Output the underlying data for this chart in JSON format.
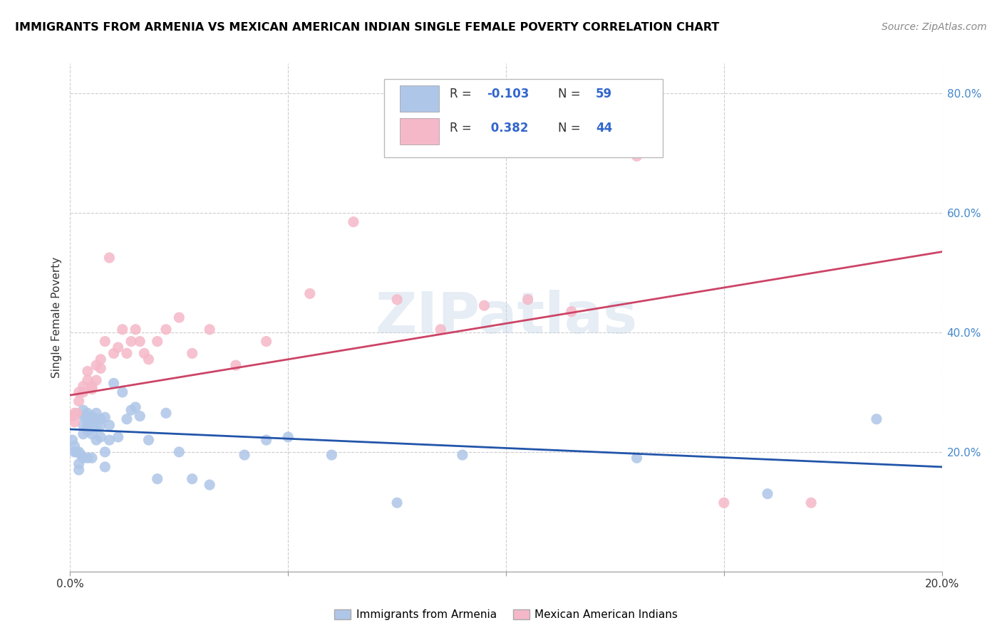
{
  "title": "IMMIGRANTS FROM ARMENIA VS MEXICAN AMERICAN INDIAN SINGLE FEMALE POVERTY CORRELATION CHART",
  "source": "Source: ZipAtlas.com",
  "ylabel": "Single Female Poverty",
  "x_min": 0.0,
  "x_max": 0.2,
  "y_min": 0.0,
  "y_max": 0.85,
  "right_y_ticks": [
    0.2,
    0.4,
    0.6,
    0.8
  ],
  "right_y_labels": [
    "20.0%",
    "40.0%",
    "60.0%",
    "80.0%"
  ],
  "x_tick_positions": [
    0.0,
    0.05,
    0.1,
    0.15,
    0.2
  ],
  "x_tick_labels": [
    "0.0%",
    "",
    "",
    "",
    "20.0%"
  ],
  "blue_color": "#aec6e8",
  "pink_color": "#f5b8c8",
  "blue_line_color": "#2255aa",
  "pink_line_color": "#cc4466",
  "watermark": "ZIPatlas",
  "blue_r": "-0.103",
  "blue_n": "59",
  "pink_r": "0.382",
  "pink_n": "44",
  "blue_scatter_x": [
    0.0005,
    0.001,
    0.001,
    0.0015,
    0.002,
    0.002,
    0.002,
    0.0025,
    0.003,
    0.003,
    0.003,
    0.003,
    0.003,
    0.0035,
    0.004,
    0.004,
    0.004,
    0.004,
    0.004,
    0.004,
    0.005,
    0.005,
    0.005,
    0.005,
    0.005,
    0.006,
    0.006,
    0.006,
    0.006,
    0.007,
    0.007,
    0.007,
    0.008,
    0.008,
    0.008,
    0.009,
    0.009,
    0.01,
    0.011,
    0.012,
    0.013,
    0.014,
    0.015,
    0.016,
    0.018,
    0.02,
    0.022,
    0.025,
    0.028,
    0.032,
    0.04,
    0.045,
    0.05,
    0.06,
    0.075,
    0.09,
    0.13,
    0.16,
    0.185
  ],
  "blue_scatter_y": [
    0.22,
    0.21,
    0.2,
    0.2,
    0.2,
    0.18,
    0.17,
    0.195,
    0.27,
    0.26,
    0.245,
    0.23,
    0.19,
    0.26,
    0.265,
    0.255,
    0.245,
    0.24,
    0.235,
    0.19,
    0.26,
    0.255,
    0.24,
    0.23,
    0.19,
    0.265,
    0.255,
    0.24,
    0.22,
    0.255,
    0.245,
    0.225,
    0.258,
    0.2,
    0.175,
    0.245,
    0.22,
    0.315,
    0.225,
    0.3,
    0.255,
    0.27,
    0.275,
    0.26,
    0.22,
    0.155,
    0.265,
    0.2,
    0.155,
    0.145,
    0.195,
    0.22,
    0.225,
    0.195,
    0.115,
    0.195,
    0.19,
    0.13,
    0.255
  ],
  "pink_scatter_x": [
    0.0005,
    0.001,
    0.001,
    0.0015,
    0.002,
    0.002,
    0.003,
    0.003,
    0.004,
    0.004,
    0.005,
    0.005,
    0.006,
    0.006,
    0.007,
    0.007,
    0.008,
    0.009,
    0.01,
    0.011,
    0.012,
    0.013,
    0.014,
    0.015,
    0.016,
    0.017,
    0.018,
    0.02,
    0.022,
    0.025,
    0.028,
    0.032,
    0.038,
    0.045,
    0.055,
    0.065,
    0.075,
    0.085,
    0.095,
    0.105,
    0.115,
    0.13,
    0.15,
    0.17
  ],
  "pink_scatter_y": [
    0.26,
    0.265,
    0.25,
    0.265,
    0.3,
    0.285,
    0.31,
    0.3,
    0.335,
    0.32,
    0.305,
    0.31,
    0.345,
    0.32,
    0.355,
    0.34,
    0.385,
    0.525,
    0.365,
    0.375,
    0.405,
    0.365,
    0.385,
    0.405,
    0.385,
    0.365,
    0.355,
    0.385,
    0.405,
    0.425,
    0.365,
    0.405,
    0.345,
    0.385,
    0.465,
    0.585,
    0.455,
    0.405,
    0.445,
    0.455,
    0.435,
    0.695,
    0.115,
    0.115
  ],
  "blue_trend_x": [
    0.0,
    0.2
  ],
  "blue_trend_y": [
    0.238,
    0.175
  ],
  "pink_trend_x": [
    0.0,
    0.2
  ],
  "pink_trend_y": [
    0.295,
    0.535
  ]
}
